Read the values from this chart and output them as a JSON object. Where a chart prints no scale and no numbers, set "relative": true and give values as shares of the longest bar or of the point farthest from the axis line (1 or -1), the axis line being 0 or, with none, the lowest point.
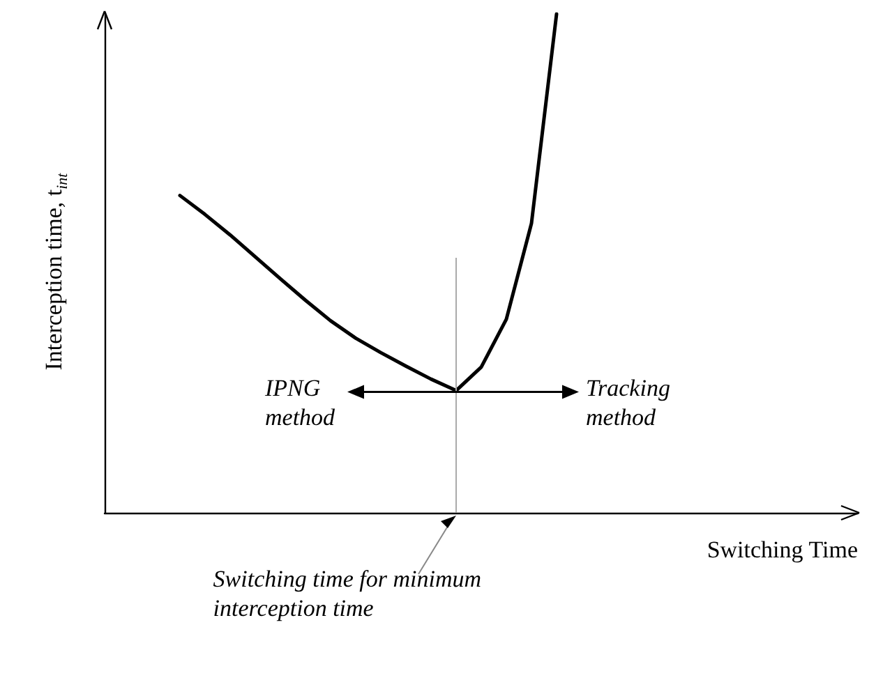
{
  "chart_data": {
    "type": "line",
    "relative": true,
    "xlabel": "Switching Time",
    "ylabel": "Interception time, t$_{int}$",
    "categories": [
      null,
      null,
      null,
      null,
      null,
      null,
      null,
      null,
      null,
      null,
      null,
      null,
      null,
      null,
      null,
      null,
      null,
      null,
      null,
      null,
      null,
      null,
      null,
      null,
      null,
      null,
      null,
      null,
      null,
      null,
      null
    ],
    "series": [
      {
        "color": "#000000",
        "values": [
          null,
          null,
          null,
          0.636,
          0.598,
          0.557,
          0.513,
          0.469,
          0.426,
          0.385,
          0.35,
          0.321,
          0.294,
          0.268,
          0.245,
          0.292,
          0.388,
          0.58,
          1,
          null,
          null,
          null,
          null,
          null,
          null,
          null,
          null,
          null,
          null,
          null,
          null
        ]
      }
    ],
    "annotations": [
      "IPNG\nmethod",
      "Tracking\nmethod",
      "Switching time for minimum\ninterception time"
    ],
    "grid": false,
    "marker": "none",
    "line_style": "solid"
  }
}
